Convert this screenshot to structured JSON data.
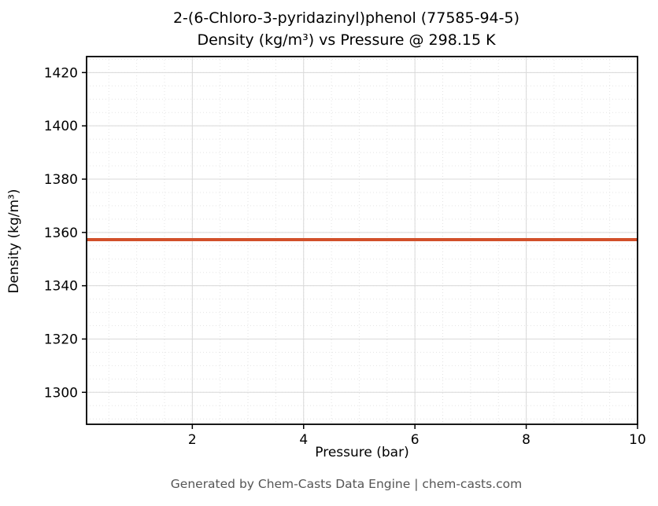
{
  "chart_data": {
    "type": "line",
    "title_line1": "2-(6-Chloro-3-pyridazinyl)phenol (77585-94-5)",
    "title_line2": "Density (kg/m³) vs Pressure @ 298.15 K",
    "xlabel": "Pressure (bar)",
    "ylabel": "Density (kg/m³)",
    "xlim": [
      0.1,
      10
    ],
    "ylim": [
      1288,
      1426
    ],
    "x_major_ticks": [
      2,
      4,
      6,
      8,
      10
    ],
    "y_major_ticks": [
      1300,
      1320,
      1340,
      1360,
      1380,
      1400,
      1420
    ],
    "x_minor_step": 0.5,
    "y_minor_step": 5,
    "grid": true,
    "legend": "none",
    "series": [
      {
        "name": "density-vs-pressure",
        "color": "#d2502a",
        "x": [
          0.1,
          10
        ],
        "y": [
          1357.3,
          1357.3
        ]
      }
    ],
    "colors": {
      "major_grid": "#d9d9d9",
      "minor_grid": "#e4e4e4",
      "spine": "#000000",
      "footer_text": "#555555"
    },
    "footer": "Generated by Chem-Casts Data Engine | chem-casts.com"
  }
}
